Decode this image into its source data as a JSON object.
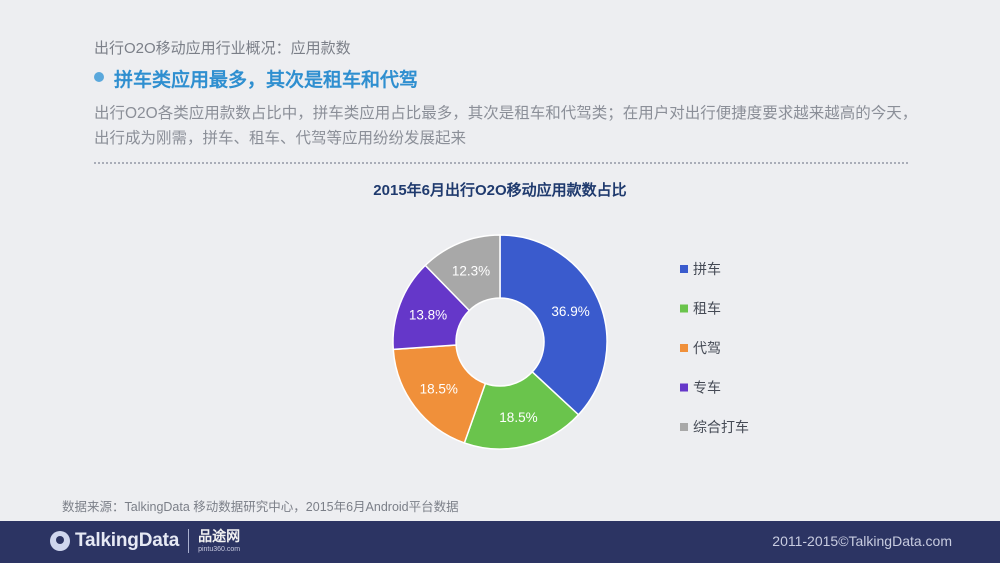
{
  "header": {
    "section_label": "出行O2O移动应用行业概况：应用款数",
    "headline": "拼车类应用最多，其次是租车和代驾",
    "description": "出行O2O各类应用款数占比中，拼车类应用占比最多，其次是租车和代驾类；在用户对出行便捷度要求越来越高的今天，出行成为刚需，拼车、租车、代驾等应用纷纷发展起来"
  },
  "chart_data": {
    "type": "pie",
    "variant": "donut",
    "title": "2015年6月出行O2O移动应用款数占比",
    "unit": "%",
    "legend_position": "right",
    "categories": [
      "拼车",
      "租车",
      "代驾",
      "专车",
      "综合打车"
    ],
    "values": [
      36.9,
      18.5,
      18.5,
      13.8,
      12.3
    ],
    "labels": [
      "36.9%",
      "18.5%",
      "18.5%",
      "13.8%",
      "12.3%"
    ],
    "colors": [
      "#3a5bcd",
      "#6ac44c",
      "#f0903a",
      "#6537c9",
      "#a8a8a8"
    ]
  },
  "source": "数据来源：TalkingData 移动数据研究中心，2015年6月Android平台数据",
  "footer": {
    "logo_text": "TalkingData",
    "partner_logo": "品途网",
    "partner_url": "pintu360.com",
    "copyright": "2011-2015©TalkingData.com"
  }
}
